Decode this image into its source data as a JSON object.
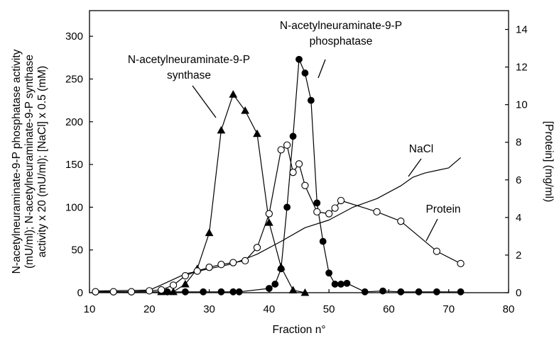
{
  "chart_data": {
    "type": "line",
    "xlabel": "Fraction n°",
    "ylabel": [
      "N-acetylneuraminate-9-P phosphatase activity",
      "(mU/ml); N-acetylneuraminate-9-P synthase",
      "activity x 20 (mU/ml); [NaCl] x 0.5 (mM)"
    ],
    "y2label": "[Protein] (mg/ml)",
    "xlim": [
      10,
      80
    ],
    "ylim": [
      0,
      330
    ],
    "y2lim": [
      0,
      15
    ],
    "xticks": [
      10,
      20,
      30,
      40,
      50,
      60,
      70,
      80
    ],
    "yticks": [
      0,
      50,
      100,
      150,
      200,
      250,
      300
    ],
    "y2ticks": [
      0,
      2,
      4,
      6,
      8,
      10,
      12,
      14
    ],
    "grid": false,
    "legend": "none",
    "series": [
      {
        "name": "N-acetylneuraminate-9-P phosphatase",
        "axis": "left",
        "marker": "filled-circle",
        "x": [
          11,
          14,
          17,
          23,
          26,
          29,
          32,
          34,
          35,
          40,
          41,
          42,
          43,
          44,
          45,
          46,
          47,
          48,
          49,
          50,
          51,
          52,
          53,
          56,
          59,
          62,
          65,
          68,
          72
        ],
        "y": [
          1,
          1,
          1,
          1,
          1,
          1,
          1,
          1,
          1,
          5,
          10,
          28,
          100,
          183,
          273,
          257,
          225,
          105,
          60,
          23,
          10,
          10,
          11,
          1,
          2,
          1,
          1,
          1,
          1
        ]
      },
      {
        "name": "N-acetylneuraminate-9-P synthase",
        "axis": "left",
        "marker": "filled-triangle",
        "x": [
          22,
          24,
          26,
          28,
          30,
          32,
          34,
          36,
          38,
          40,
          42,
          44,
          46
        ],
        "y": [
          1,
          1,
          10,
          28,
          70,
          190,
          232,
          213,
          186,
          82,
          30,
          3,
          0
        ]
      },
      {
        "name": "Protein",
        "axis": "right",
        "marker": "open-circle",
        "x": [
          11,
          14,
          17,
          20,
          22,
          24,
          26,
          28,
          30,
          32,
          34,
          36,
          38,
          40,
          42,
          43,
          44,
          45,
          46,
          48,
          50,
          51,
          52,
          58,
          62,
          68,
          72
        ],
        "y": [
          0.05,
          0.05,
          0.05,
          0.1,
          0.15,
          0.4,
          0.9,
          1.15,
          1.35,
          1.5,
          1.6,
          1.7,
          2.4,
          4.2,
          7.6,
          7.85,
          6.4,
          6.85,
          5.7,
          4.3,
          4.2,
          4.5,
          4.9,
          4.3,
          3.8,
          2.2,
          1.55
        ]
      },
      {
        "name": "NaCl",
        "axis": "left",
        "marker": "none",
        "x": [
          11,
          20,
          22,
          26,
          30,
          34,
          38,
          42,
          46,
          50,
          54,
          58,
          62,
          64,
          66,
          68,
          70,
          72
        ],
        "y": [
          2,
          3,
          9,
          22,
          28,
          34,
          45,
          60,
          76,
          85,
          100,
          110,
          125,
          135,
          140,
          143,
          146,
          158
        ]
      }
    ],
    "annotations": {
      "phosphatase": [
        "N-acetylneuraminate-9-P",
        "phosphatase"
      ],
      "synthase": [
        "N-acetylneuraminate-9-P",
        "synthase"
      ],
      "nacl": "NaCl",
      "protein": "Protein"
    }
  }
}
